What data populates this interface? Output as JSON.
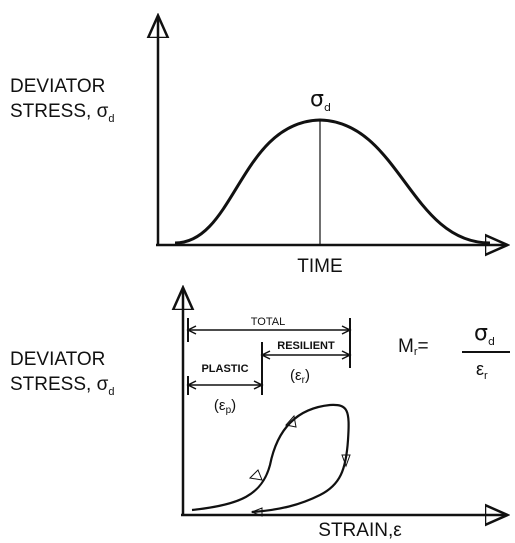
{
  "top": {
    "y_label": [
      "DEVIATOR",
      "STRESS, σ",
      "d"
    ],
    "peak_label": [
      "σ",
      "d"
    ],
    "x_label": "TIME"
  },
  "bottom": {
    "y_label": [
      "DEVIATOR",
      "STRESS, σ",
      "d"
    ],
    "total": "TOTAL",
    "resilient": "RESILIENT",
    "plastic": "PLASTIC",
    "resilient_strain": [
      "(ε",
      "r",
      ")"
    ],
    "plastic_strain": [
      "(ε",
      "p",
      ")"
    ],
    "formula": {
      "lhs": [
        "M",
        "r",
        "="
      ],
      "numerator": [
        "σ",
        "d"
      ],
      "denominator": [
        "ε",
        "r"
      ]
    },
    "x_label": "STRAIN,ε"
  }
}
